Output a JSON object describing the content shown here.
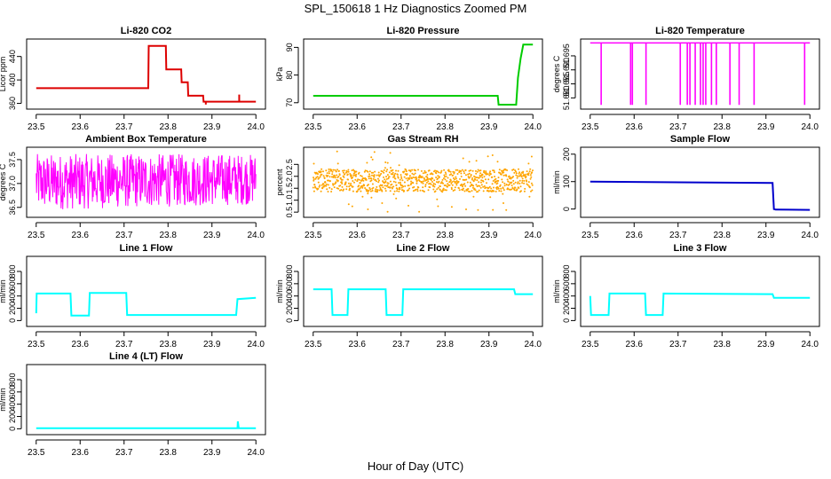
{
  "figure": {
    "title": "SPL_150618  1 Hz Diagnostics Zoomed PM",
    "xlabel": "Hour of Day (UTC)"
  },
  "chart_data": [
    {
      "type": "line",
      "title": "Li-820 CO2",
      "ylabel": "Licor ppm",
      "color": "#dd0000",
      "xlim": [
        23.5,
        24.0
      ],
      "xticks": [
        23.5,
        23.6,
        23.7,
        23.8,
        23.9,
        24.0
      ],
      "ylim": [
        355,
        465
      ],
      "yticks": [
        360,
        400,
        440
      ],
      "points": [
        [
          23.5,
          386
        ],
        [
          23.755,
          386
        ],
        [
          23.756,
          458
        ],
        [
          23.795,
          458
        ],
        [
          23.796,
          418
        ],
        [
          23.83,
          418
        ],
        [
          23.831,
          396
        ],
        [
          23.845,
          396
        ],
        [
          23.846,
          373
        ],
        [
          23.88,
          373
        ],
        [
          23.881,
          363
        ],
        [
          24.0,
          363
        ]
      ],
      "spikes": [
        [
          23.886,
          358
        ],
        [
          23.962,
          375
        ]
      ]
    },
    {
      "type": "line",
      "title": "Li-820 Pressure",
      "ylabel": "kPa",
      "color": "#00cc00",
      "xlim": [
        23.5,
        24.0
      ],
      "xticks": [
        23.5,
        23.6,
        23.7,
        23.8,
        23.9,
        24.0
      ],
      "ylim": [
        68.7,
        92
      ],
      "yticks": [
        70,
        80,
        90
      ],
      "points": [
        [
          23.5,
          72.5
        ],
        [
          23.92,
          72.5
        ],
        [
          23.922,
          69.3
        ],
        [
          23.962,
          69.3
        ],
        [
          23.966,
          79
        ],
        [
          23.972,
          86
        ],
        [
          23.978,
          91
        ],
        [
          24.0,
          91
        ]
      ]
    },
    {
      "type": "line",
      "title": "Li-820 Temperature",
      "ylabel": "degrees C",
      "color": "#ff00ff",
      "xlim": [
        23.5,
        24.0
      ],
      "xticks": [
        23.5,
        23.6,
        23.7,
        23.8,
        23.9,
        24.0
      ],
      "ylim": [
        51.677,
        51.7
      ],
      "yticks": [
        51.68,
        51.685,
        51.69,
        51.695
      ],
      "baseline": 51.6996,
      "dip_value": 51.6775,
      "dips": [
        23.525,
        23.592,
        23.596,
        23.627,
        23.705,
        23.721,
        23.727,
        23.739,
        23.751,
        23.757,
        23.763,
        23.776,
        23.787,
        23.818,
        23.839,
        23.873,
        23.988
      ]
    },
    {
      "type": "line",
      "title": "Ambient Box Temperature",
      "ylabel": "degrees C",
      "color": "#ff00ff",
      "xlim": [
        23.5,
        24.0
      ],
      "xticks": [
        23.5,
        23.6,
        23.7,
        23.8,
        23.9,
        24.0
      ],
      "ylim": [
        36.35,
        37.7
      ],
      "yticks": [
        36.5,
        37.0,
        37.5
      ],
      "noise": {
        "low": 36.44,
        "high": 37.62,
        "center": 36.95
      }
    },
    {
      "type": "scatter",
      "title": "Gas Stream RH",
      "ylabel": "percent",
      "color": "#ffa500",
      "xlim": [
        23.5,
        24.0
      ],
      "xticks": [
        23.5,
        23.6,
        23.7,
        23.8,
        23.9,
        24.0
      ],
      "ylim": [
        0.4,
        3.1
      ],
      "yticks": [
        0.5,
        1.0,
        1.5,
        2.0,
        2.5
      ],
      "noise": {
        "low": 1.35,
        "high": 2.3,
        "outlier_low": 0.5,
        "outlier_high": 3.05
      }
    },
    {
      "type": "line",
      "title": "Sample Flow",
      "ylabel": "ml/min",
      "color": "#0000cc",
      "xlim": [
        23.5,
        24.0
      ],
      "xticks": [
        23.5,
        23.6,
        23.7,
        23.8,
        23.9,
        24.0
      ],
      "ylim": [
        -20,
        215
      ],
      "yticks": [
        0,
        100,
        200
      ],
      "points": [
        [
          23.5,
          100
        ],
        [
          23.915,
          95
        ],
        [
          23.918,
          0
        ],
        [
          23.922,
          -2
        ],
        [
          24.0,
          -3
        ]
      ]
    },
    {
      "type": "line",
      "title": "Line 1 Flow",
      "ylabel": "ml/min",
      "color": "#00ffff",
      "xlim": [
        23.5,
        24.0
      ],
      "xticks": [
        23.5,
        23.6,
        23.7,
        23.8,
        23.9,
        24.0
      ],
      "ylim": [
        -50,
        1000
      ],
      "yticks": [
        0,
        200,
        400,
        600,
        800
      ],
      "points": [
        [
          23.5,
          120
        ],
        [
          23.501,
          440
        ],
        [
          23.578,
          440
        ],
        [
          23.58,
          80
        ],
        [
          23.62,
          80
        ],
        [
          23.622,
          450
        ],
        [
          23.705,
          450
        ],
        [
          23.707,
          90
        ],
        [
          23.955,
          90
        ],
        [
          23.958,
          350
        ],
        [
          24.0,
          370
        ]
      ]
    },
    {
      "type": "line",
      "title": "Line 2 Flow",
      "ylabel": "ml/min",
      "color": "#00ffff",
      "xlim": [
        23.5,
        24.0
      ],
      "xticks": [
        23.5,
        23.6,
        23.7,
        23.8,
        23.9,
        24.0
      ],
      "ylim": [
        -50,
        1000
      ],
      "yticks": [
        0,
        200,
        400,
        600,
        800
      ],
      "points": [
        [
          23.5,
          510
        ],
        [
          23.542,
          510
        ],
        [
          23.544,
          90
        ],
        [
          23.578,
          90
        ],
        [
          23.58,
          510
        ],
        [
          23.665,
          510
        ],
        [
          23.667,
          90
        ],
        [
          23.703,
          90
        ],
        [
          23.705,
          510
        ],
        [
          23.957,
          510
        ],
        [
          23.96,
          430
        ],
        [
          24.0,
          430
        ]
      ]
    },
    {
      "type": "line",
      "title": "Line 3 Flow",
      "ylabel": "ml/min",
      "color": "#00ffff",
      "xlim": [
        23.5,
        24.0
      ],
      "xticks": [
        23.5,
        23.6,
        23.7,
        23.8,
        23.9,
        24.0
      ],
      "ylim": [
        -50,
        1000
      ],
      "yticks": [
        0,
        200,
        400,
        600,
        800
      ],
      "points": [
        [
          23.5,
          400
        ],
        [
          23.502,
          90
        ],
        [
          23.542,
          90
        ],
        [
          23.544,
          440
        ],
        [
          23.625,
          440
        ],
        [
          23.627,
          90
        ],
        [
          23.665,
          90
        ],
        [
          23.667,
          440
        ],
        [
          23.915,
          430
        ],
        [
          23.918,
          370
        ],
        [
          24.0,
          370
        ]
      ]
    },
    {
      "type": "line",
      "title": "Line 4 (LT) Flow",
      "ylabel": "ml/min",
      "color": "#00ffff",
      "xlim": [
        23.5,
        24.0
      ],
      "xticks": [
        23.5,
        23.6,
        23.7,
        23.8,
        23.9,
        24.0
      ],
      "ylim": [
        -50,
        1000
      ],
      "yticks": [
        0,
        200,
        400,
        600,
        800
      ],
      "points": [
        [
          23.5,
          10
        ],
        [
          23.958,
          10
        ],
        [
          23.959,
          120
        ],
        [
          23.961,
          10
        ],
        [
          24.0,
          10
        ]
      ]
    }
  ]
}
